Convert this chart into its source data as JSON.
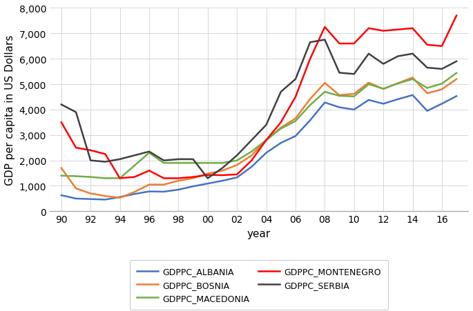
{
  "years": [
    1990,
    1991,
    1992,
    1993,
    1994,
    1995,
    1996,
    1997,
    1998,
    1999,
    2000,
    2001,
    2002,
    2003,
    2004,
    2005,
    2006,
    2007,
    2008,
    2009,
    2010,
    2011,
    2012,
    2013,
    2014,
    2015,
    2016,
    2017
  ],
  "albania": [
    630,
    500,
    480,
    460,
    560,
    680,
    780,
    770,
    850,
    980,
    1090,
    1200,
    1330,
    1750,
    2300,
    2690,
    2960,
    3580,
    4280,
    4090,
    4000,
    4380,
    4230,
    4410,
    4570,
    3950,
    4230,
    4530
  ],
  "bosnia": [
    1700,
    900,
    700,
    600,
    530,
    760,
    1050,
    1050,
    1200,
    1300,
    1480,
    1600,
    1820,
    2200,
    2800,
    3290,
    3650,
    4420,
    5050,
    4570,
    4620,
    5060,
    4810,
    5040,
    5260,
    4640,
    4800,
    5200
  ],
  "macedonia": [
    1400,
    1380,
    1350,
    1300,
    1300,
    1800,
    2300,
    1900,
    1900,
    1900,
    1900,
    1900,
    2000,
    2350,
    2800,
    3250,
    3550,
    4180,
    4700,
    4540,
    4520,
    5000,
    4820,
    5030,
    5200,
    4850,
    5020,
    5440
  ],
  "montenegro": [
    3500,
    2500,
    2400,
    2250,
    1300,
    1350,
    1600,
    1300,
    1300,
    1350,
    1430,
    1420,
    1450,
    2000,
    2800,
    3500,
    4500,
    6000,
    7250,
    6600,
    6600,
    7200,
    7100,
    7150,
    7200,
    6550,
    6500,
    7700
  ],
  "serbia": [
    4200,
    3900,
    2000,
    1950,
    2050,
    2200,
    2350,
    2000,
    2050,
    2050,
    1300,
    1700,
    2200,
    2800,
    3400,
    4700,
    5200,
    6650,
    6750,
    5450,
    5400,
    6200,
    5800,
    6100,
    6200,
    5650,
    5600,
    5900
  ],
  "colors": {
    "albania": "#4472C4",
    "bosnia": "#ED7D31",
    "macedonia": "#70AD47",
    "montenegro": "#FF0000",
    "serbia": "#404040"
  },
  "ylabel": "GDP per capita in US Dollars",
  "xlabel": "year",
  "ylim": [
    0,
    8000
  ],
  "yticks": [
    0,
    1000,
    2000,
    3000,
    4000,
    5000,
    6000,
    7000,
    8000
  ],
  "xtick_years": [
    1990,
    1992,
    1994,
    1996,
    1998,
    2000,
    2002,
    2004,
    2006,
    2008,
    2010,
    2012,
    2014,
    2016
  ],
  "xtick_labels": [
    "90",
    "92",
    "94",
    "96",
    "98",
    "00",
    "02",
    "04",
    "06",
    "08",
    "10",
    "12",
    "14",
    "16"
  ],
  "legend_labels": [
    "GDPPC_ALBANIA",
    "GDPPC_BOSNIA",
    "GDPPC_MACEDONIA",
    "GDPPC_MONTENEGRO",
    "GDPPC_SERBIA"
  ],
  "legend_order": [
    0,
    1,
    2,
    3,
    4
  ],
  "figsize": [
    6.85,
    4.52
  ],
  "dpi": 100,
  "linewidth": 1.8,
  "grid_color": "#d0d0d0",
  "grid_linewidth": 0.6,
  "tick_fontsize": 10,
  "label_fontsize": 11,
  "legend_fontsize": 9
}
